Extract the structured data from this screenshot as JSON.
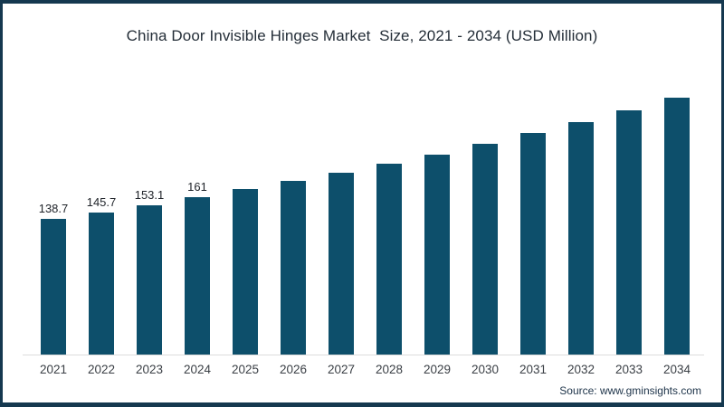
{
  "page": {
    "source": "Source: www.gminsights.com"
  },
  "colors": {
    "background": "#ffffff",
    "frame_border": "#15384f",
    "bar": "#0d4f6b",
    "axis_line": "#dcdcdc",
    "title_text": "#242e38",
    "data_label_text": "#1f2329",
    "year_text": "#3a3f45",
    "source_text": "#1d3349"
  },
  "chart_data": {
    "type": "bar",
    "title": "China Door Invisible Hinges Market  Size, 2021 - 2034 (USD Million)",
    "categories": [
      "2021",
      "2022",
      "2023",
      "2024",
      "2025",
      "2026",
      "2027",
      "2028",
      "2029",
      "2030",
      "2031",
      "2032",
      "2033",
      "2034"
    ],
    "values": [
      138.7,
      145.7,
      153.1,
      161,
      169.2,
      177.7,
      186.4,
      195.5,
      205.0,
      215.6,
      226.8,
      238.3,
      250.4,
      263.2
    ],
    "data_labels": [
      "138.7",
      "145.7",
      "153.1",
      "161",
      "",
      "",
      "",
      "",
      "",
      "",
      "",
      "",
      "",
      ""
    ],
    "xlabel": "",
    "ylabel": "USD Million",
    "ylim": [
      0,
      280
    ],
    "grid": false,
    "legend": false,
    "bar_color": "#0d4f6b"
  }
}
